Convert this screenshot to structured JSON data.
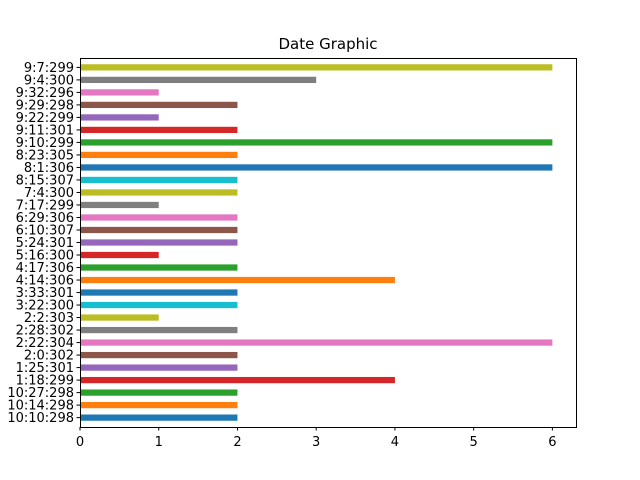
{
  "chart_data": {
    "type": "bar",
    "orientation": "horizontal",
    "title": "Date Graphic",
    "xlabel": "",
    "ylabel": "",
    "xlim": [
      0,
      6.3
    ],
    "xticks": [
      0,
      1,
      2,
      3,
      4,
      5,
      6
    ],
    "grid": false,
    "legend": "none",
    "categories": [
      "10:10:298",
      "10:14:298",
      "10:27:298",
      "1:18:299",
      "1:25:301",
      "2:0:302",
      "2:22:304",
      "2:28:302",
      "2:2:303",
      "3:22:300",
      "3:33:301",
      "4:14:306",
      "4:17:306",
      "5:16:300",
      "5:24:301",
      "6:10:307",
      "6:29:306",
      "7:17:299",
      "7:4:300",
      "8:15:307",
      "8:1:306",
      "8:23:305",
      "9:10:299",
      "9:11:301",
      "9:22:299",
      "9:29:298",
      "9:32:296",
      "9:4:300",
      "9:7:299"
    ],
    "values": [
      2,
      2,
      2,
      4,
      2,
      2,
      6,
      2,
      1,
      2,
      2,
      4,
      2,
      1,
      2,
      2,
      2,
      1,
      2,
      2,
      6,
      2,
      6,
      2,
      1,
      2,
      1,
      3,
      6
    ],
    "colors": [
      "#1f77b4",
      "#ff7f0e",
      "#2ca02c",
      "#d62728",
      "#9467bd",
      "#8c564b",
      "#e377c2",
      "#7f7f7f",
      "#bcbd22",
      "#17becf"
    ]
  }
}
